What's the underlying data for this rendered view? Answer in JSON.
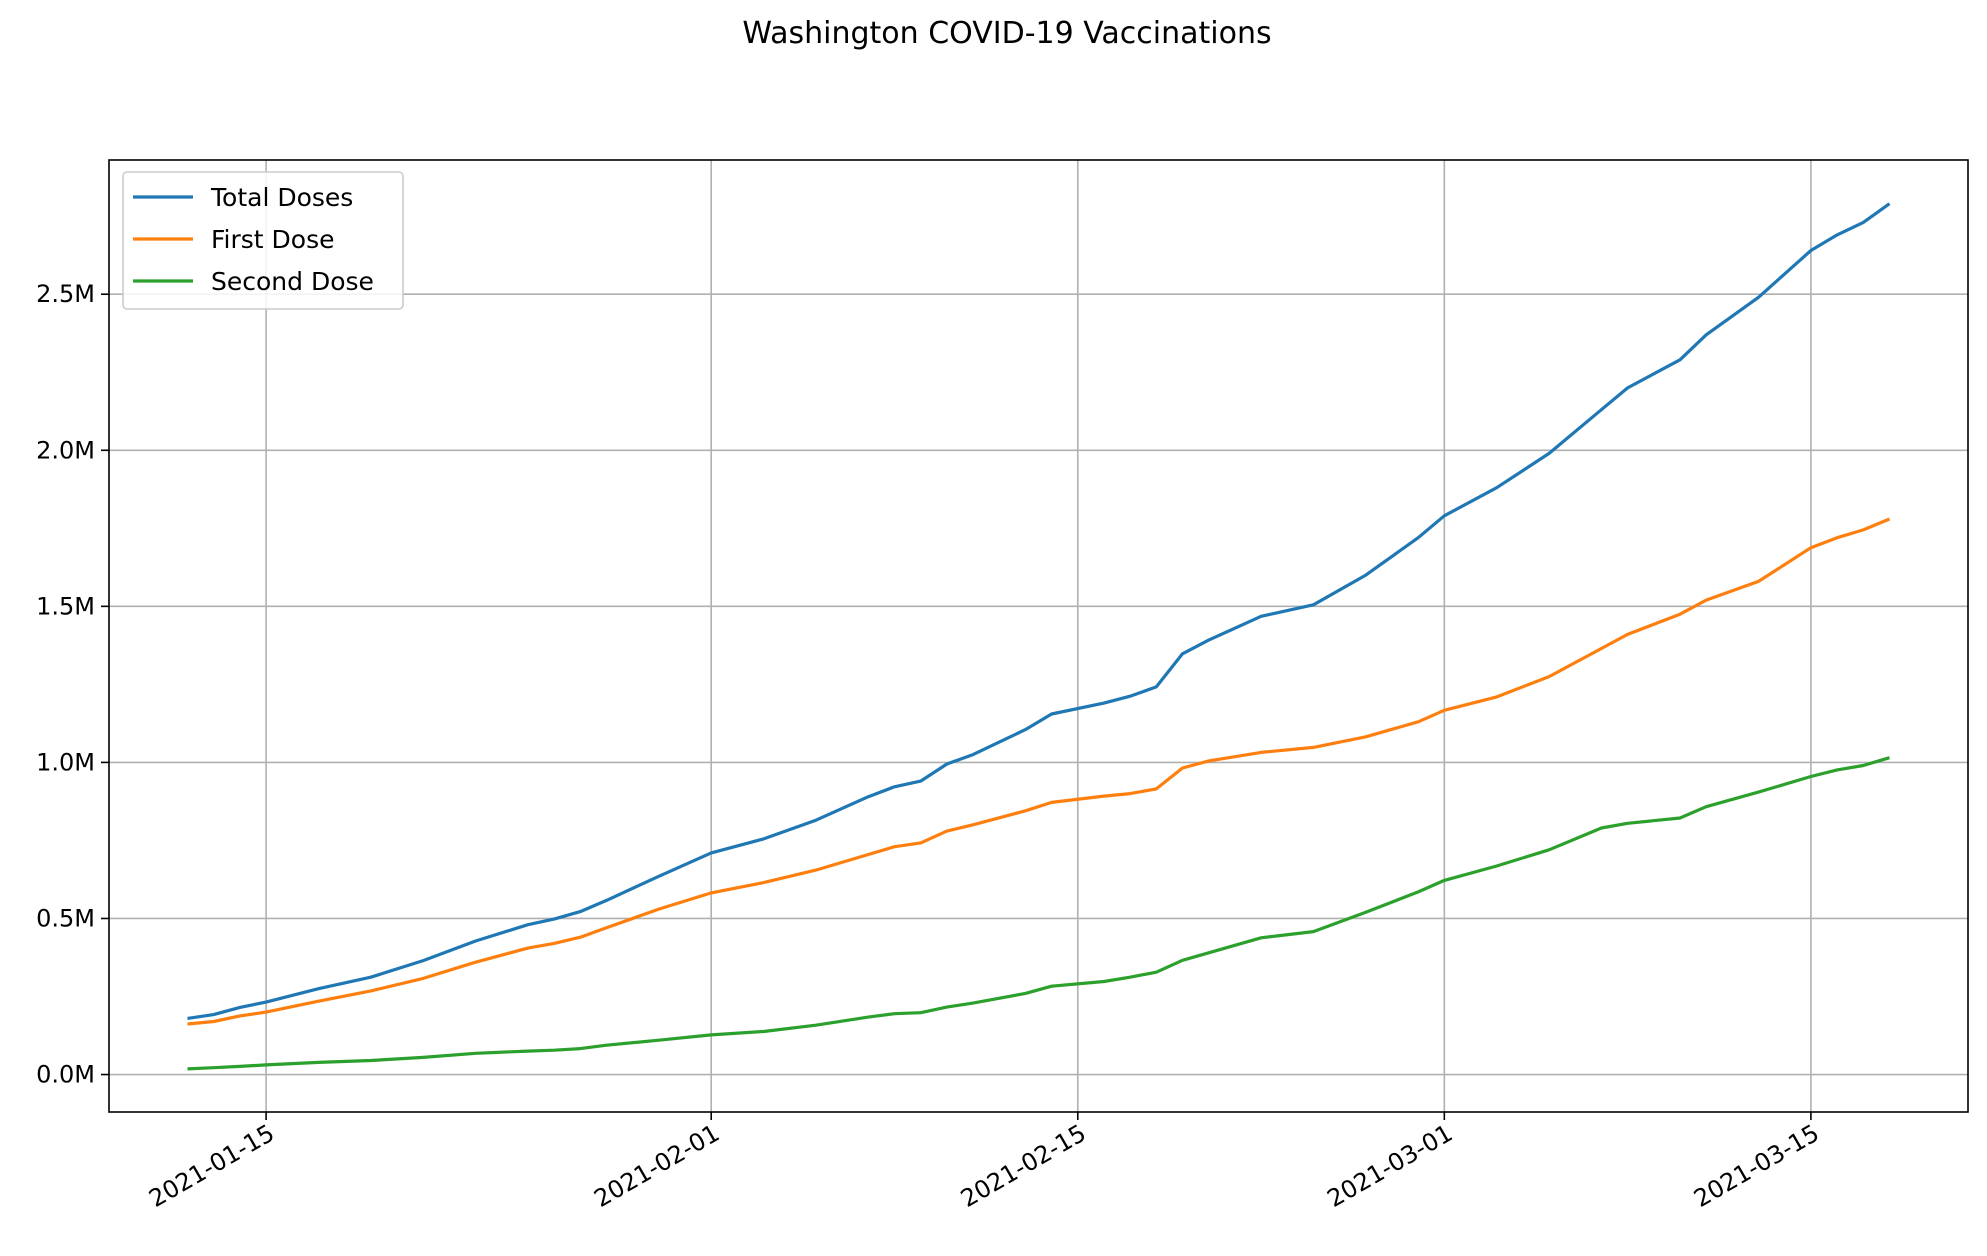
{
  "chart_data": {
    "type": "line",
    "title": "Washington COVID-19 Vaccinations",
    "xlabel": "",
    "ylabel": "",
    "x_is_date": true,
    "xlim": [
      "2021-01-09",
      "2021-03-21"
    ],
    "ylim": [
      -120000,
      2930000
    ],
    "grid": true,
    "legend_position": "top-left",
    "x_ticks": [
      "2021-01-15",
      "2021-02-01",
      "2021-02-15",
      "2021-03-01",
      "2021-03-15"
    ],
    "y_ticks": [
      {
        "value": 0,
        "label": "0.0M"
      },
      {
        "value": 500000,
        "label": "0.5M"
      },
      {
        "value": 1000000,
        "label": "1.0M"
      },
      {
        "value": 1500000,
        "label": "1.5M"
      },
      {
        "value": 2000000,
        "label": "2.0M"
      },
      {
        "value": 2500000,
        "label": "2.5M"
      }
    ],
    "x": [
      "2021-01-12",
      "2021-01-13",
      "2021-01-14",
      "2021-01-15",
      "2021-01-17",
      "2021-01-19",
      "2021-01-21",
      "2021-01-23",
      "2021-01-25",
      "2021-01-26",
      "2021-01-27",
      "2021-01-28",
      "2021-01-30",
      "2021-02-01",
      "2021-02-03",
      "2021-02-05",
      "2021-02-07",
      "2021-02-08",
      "2021-02-09",
      "2021-02-10",
      "2021-02-11",
      "2021-02-13",
      "2021-02-14",
      "2021-02-16",
      "2021-02-17",
      "2021-02-18",
      "2021-02-19",
      "2021-02-20",
      "2021-02-22",
      "2021-02-24",
      "2021-02-26",
      "2021-02-28",
      "2021-03-01",
      "2021-03-03",
      "2021-03-05",
      "2021-03-07",
      "2021-03-08",
      "2021-03-10",
      "2021-03-11",
      "2021-03-13",
      "2021-03-15",
      "2021-03-16",
      "2021-03-17",
      "2021-03-18"
    ],
    "series": [
      {
        "name": "Total Doses",
        "color": "#1f77b4",
        "values": [
          180000,
          192000,
          215000,
          232000,
          275000,
          312000,
          365000,
          428000,
          480000,
          498000,
          522000,
          558000,
          635000,
          710000,
          755000,
          815000,
          890000,
          922000,
          940000,
          995000,
          1025000,
          1105000,
          1155000,
          1190000,
          1212000,
          1242000,
          1348000,
          1392000,
          1468000,
          1505000,
          1600000,
          1720000,
          1790000,
          1880000,
          1990000,
          2130000,
          2200000,
          2290000,
          2370000,
          2490000,
          2640000,
          2690000,
          2730000,
          2790000
        ]
      },
      {
        "name": "First Dose",
        "color": "#ff7f0e",
        "values": [
          162000,
          170000,
          188000,
          200000,
          235000,
          268000,
          308000,
          360000,
          405000,
          420000,
          440000,
          470000,
          530000,
          582000,
          615000,
          655000,
          705000,
          730000,
          742000,
          780000,
          800000,
          845000,
          872000,
          892000,
          900000,
          915000,
          982000,
          1005000,
          1032000,
          1048000,
          1082000,
          1130000,
          1167000,
          1210000,
          1275000,
          1365000,
          1410000,
          1475000,
          1520000,
          1580000,
          1688000,
          1720000,
          1745000,
          1780000
        ]
      },
      {
        "name": "Second Dose",
        "color": "#2ca02c",
        "values": [
          18000,
          22000,
          26000,
          31000,
          39000,
          45000,
          55000,
          68000,
          75000,
          78000,
          83000,
          94000,
          110000,
          127000,
          138000,
          158000,
          184000,
          195000,
          198000,
          216000,
          229000,
          260000,
          283000,
          298000,
          312000,
          328000,
          366000,
          390000,
          438000,
          458000,
          520000,
          585000,
          622000,
          668000,
          720000,
          790000,
          805000,
          822000,
          858000,
          905000,
          955000,
          976000,
          990000,
          1015000
        ]
      }
    ]
  }
}
